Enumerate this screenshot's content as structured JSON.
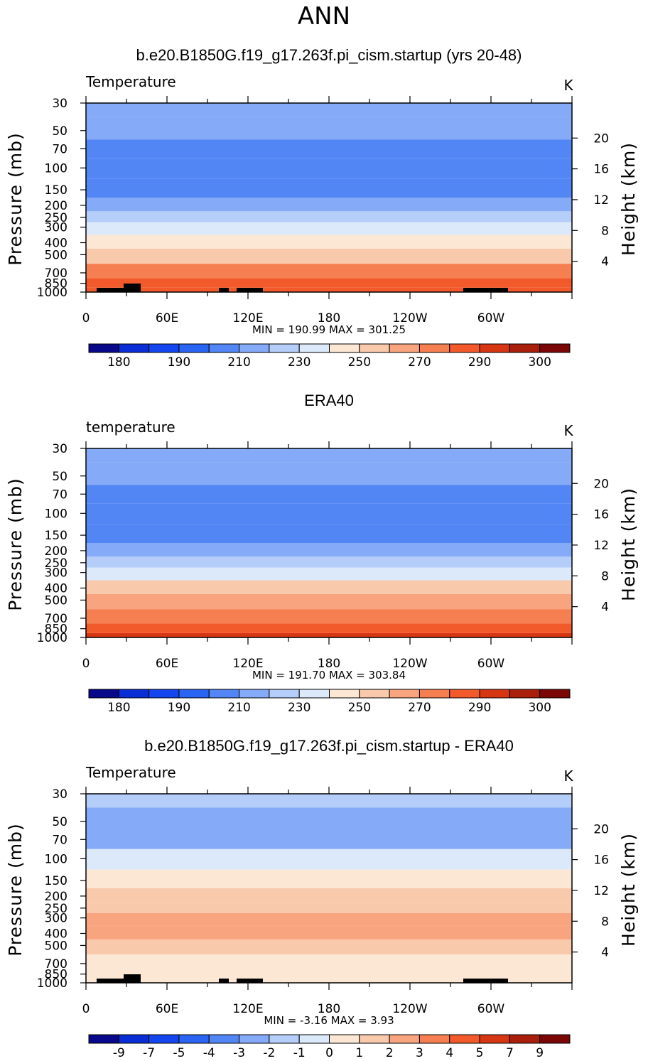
{
  "figure": {
    "season": "ANN",
    "pressure_axis_label": "Pressure (mb)",
    "height_axis_label": "Height (km)",
    "pressure_ticks": [
      30,
      50,
      70,
      100,
      150,
      200,
      250,
      300,
      400,
      500,
      700,
      850,
      1000
    ],
    "height_ticks": [
      20,
      16,
      12,
      8,
      4
    ],
    "longitude_ticks": [
      "0",
      "60E",
      "120E",
      "180",
      "120W",
      "60W"
    ],
    "colors": {
      "temperature_palette": [
        "#08088a",
        "#0a2ed6",
        "#1446f0",
        "#2a64f2",
        "#5286f5",
        "#85aaf7",
        "#b4cdf9",
        "#dbe9fb",
        "#fbe7d3",
        "#f9c9ac",
        "#f8a47e",
        "#f57f51",
        "#f25a2b",
        "#d73613",
        "#aa1f0b",
        "#7a0606"
      ],
      "difference_palette": [
        "#08088a",
        "#0a2ed6",
        "#1446f0",
        "#2a64f2",
        "#5286f5",
        "#85aaf7",
        "#b4cdf9",
        "#dbe9fb",
        "#fbe7d3",
        "#f9c9ac",
        "#f8a47e",
        "#f57f51",
        "#f25a2b",
        "#d73613",
        "#aa1f0b",
        "#7a0606"
      ],
      "land": "#000000"
    }
  },
  "chart_data": [
    {
      "type": "heatmap",
      "title": "b.e20.B1850G.f19_g17.263f.pi_cism.startup (yrs 20-48)",
      "variable_label": "Temperature",
      "units": "K",
      "pressure_levels": [
        30,
        50,
        70,
        100,
        150,
        200,
        250,
        300,
        400,
        500,
        700,
        850,
        1000
      ],
      "zonal_mean_values": [
        218,
        212,
        205,
        202,
        207,
        214,
        223,
        232,
        248,
        258,
        275,
        283,
        289
      ],
      "min_label": "MIN =",
      "min": "190.99",
      "max_label": "MAX =",
      "max": "301.25",
      "colorbar_labels": [
        "180",
        "190",
        "210",
        "230",
        "250",
        "270",
        "290",
        "300"
      ]
    },
    {
      "type": "heatmap",
      "title": "ERA40",
      "variable_label": "temperature",
      "units": "K",
      "pressure_levels": [
        30,
        50,
        70,
        100,
        150,
        200,
        250,
        300,
        400,
        500,
        700,
        850,
        1000
      ],
      "zonal_mean_values": [
        219,
        213,
        207,
        203,
        208,
        215,
        224,
        234,
        250,
        260,
        277,
        285,
        291
      ],
      "min_label": "MIN =",
      "min": "191.70",
      "max_label": "MAX =",
      "max": "303.84",
      "colorbar_labels": [
        "180",
        "190",
        "210",
        "230",
        "250",
        "270",
        "290",
        "300"
      ]
    },
    {
      "type": "heatmap",
      "title": "b.e20.B1850G.f19_g17.263f.pi_cism.startup - ERA40",
      "variable_label": "Temperature",
      "units": "K",
      "pressure_levels": [
        30,
        50,
        70,
        100,
        150,
        200,
        250,
        300,
        400,
        500,
        700,
        850,
        1000
      ],
      "zonal_mean_values": [
        -1.5,
        -2.2,
        -2.6,
        -0.8,
        0.6,
        1.4,
        1.8,
        2.4,
        2.6,
        1.6,
        0.8,
        0.3,
        0.4
      ],
      "min_label": "MIN =",
      "min": "-3.16",
      "max_label": "MAX =",
      "max": "3.93",
      "colorbar_labels": [
        "-9",
        "-7",
        "-5",
        "-4",
        "-3",
        "-2",
        "-1",
        "0",
        "1",
        "2",
        "3",
        "4",
        "5",
        "7",
        "9"
      ]
    }
  ]
}
